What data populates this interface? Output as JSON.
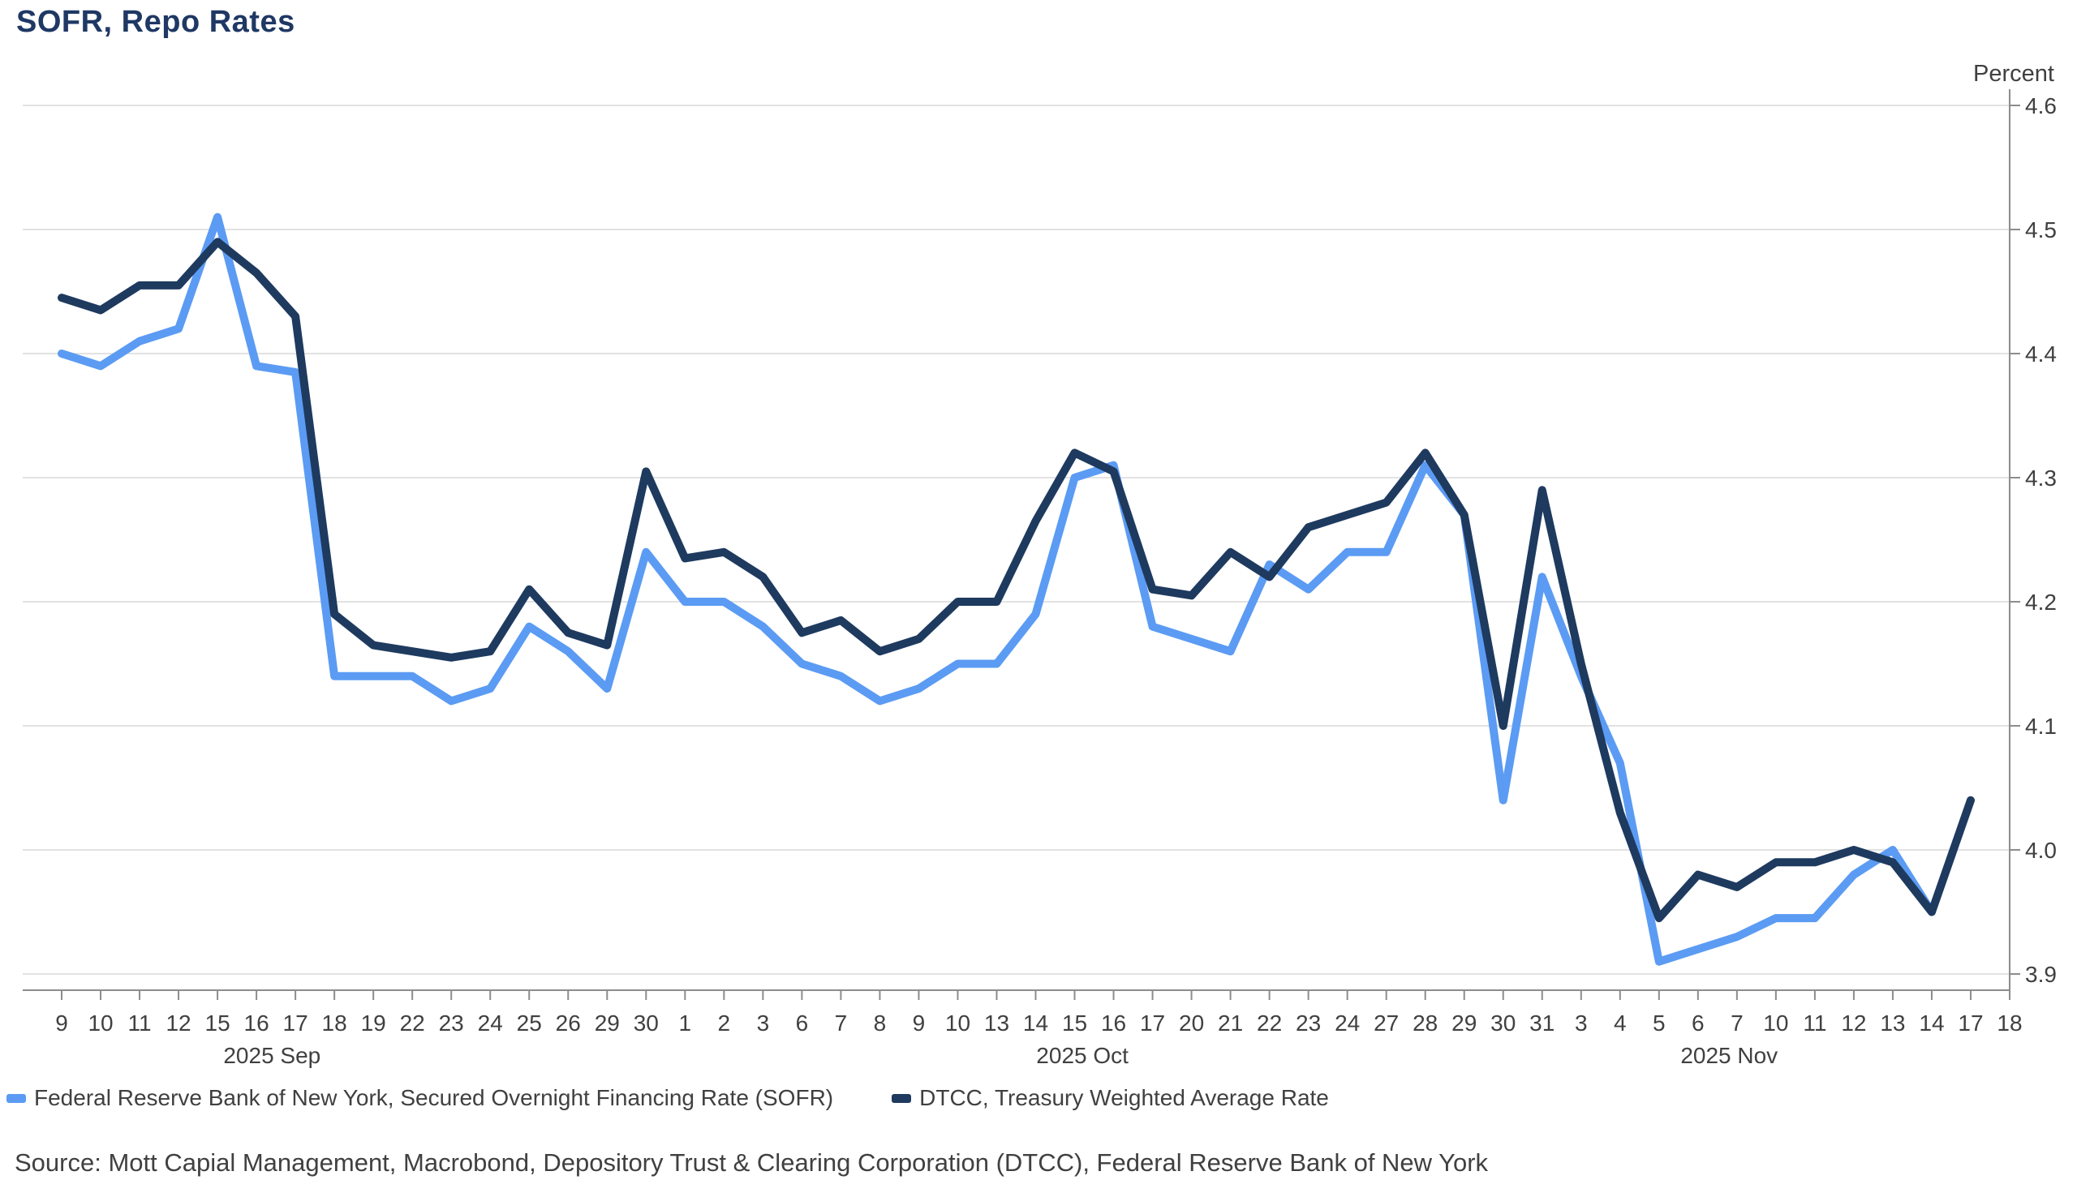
{
  "title": "SOFR, Repo Rates",
  "y_axis": {
    "unit_label": "Percent",
    "ticks": [
      "4.6",
      "4.5",
      "4.4",
      "4.3",
      "4.2",
      "4.1",
      "4.0",
      "3.9"
    ]
  },
  "x_axis": {
    "months": [
      {
        "label": "2025 Sep",
        "center_index": 5.4
      },
      {
        "label": "2025 Oct",
        "center_index": 26.2
      },
      {
        "label": "2025 Nov",
        "center_index": 42.8
      }
    ]
  },
  "legend": {
    "items": [
      {
        "label": "Federal Reserve Bank of New York, Secured Overnight Financing Rate (SOFR)",
        "color": "#5b9bf3"
      },
      {
        "label": "DTCC, Treasury Weighted Average Rate",
        "color": "#1e3a5f"
      }
    ]
  },
  "source": "Source: Mott Capial Management, Macrobond, Depository Trust & Clearing Corporation (DTCC), Federal Reserve Bank of New York",
  "colors": {
    "title": "#1f3864",
    "grid": "#d9d9d9",
    "axis": "#8c8c8c",
    "tick_text": "#404040"
  },
  "chart_data": {
    "type": "line",
    "title": "SOFR, Repo Rates",
    "ylabel": "Percent",
    "ylim": [
      3.9,
      4.6
    ],
    "grid": "horizontal",
    "legend_position": "bottom",
    "categories": [
      "9",
      "10",
      "11",
      "12",
      "15",
      "16",
      "17",
      "18",
      "19",
      "22",
      "23",
      "24",
      "25",
      "26",
      "29",
      "30",
      "1",
      "2",
      "3",
      "6",
      "7",
      "8",
      "9",
      "10",
      "13",
      "14",
      "15",
      "16",
      "17",
      "20",
      "21",
      "22",
      "23",
      "24",
      "27",
      "28",
      "29",
      "30",
      "31",
      "3",
      "4",
      "5",
      "6",
      "7",
      "10",
      "11",
      "12",
      "13",
      "14",
      "17",
      "18"
    ],
    "dates": [
      "2025-09-09",
      "2025-09-10",
      "2025-09-11",
      "2025-09-12",
      "2025-09-15",
      "2025-09-16",
      "2025-09-17",
      "2025-09-18",
      "2025-09-19",
      "2025-09-22",
      "2025-09-23",
      "2025-09-24",
      "2025-09-25",
      "2025-09-26",
      "2025-09-29",
      "2025-09-30",
      "2025-10-01",
      "2025-10-02",
      "2025-10-03",
      "2025-10-06",
      "2025-10-07",
      "2025-10-08",
      "2025-10-09",
      "2025-10-10",
      "2025-10-13",
      "2025-10-14",
      "2025-10-15",
      "2025-10-16",
      "2025-10-17",
      "2025-10-20",
      "2025-10-21",
      "2025-10-22",
      "2025-10-23",
      "2025-10-24",
      "2025-10-27",
      "2025-10-28",
      "2025-10-29",
      "2025-10-30",
      "2025-10-31",
      "2025-11-03",
      "2025-11-04",
      "2025-11-05",
      "2025-11-06",
      "2025-11-07",
      "2025-11-10",
      "2025-11-11",
      "2025-11-12",
      "2025-11-13",
      "2025-11-14",
      "2025-11-17",
      "2025-11-18"
    ],
    "series": [
      {
        "name": "Federal Reserve Bank of New York, Secured Overnight Financing Rate (SOFR)",
        "color": "#5b9bf3",
        "values": [
          4.4,
          4.39,
          4.41,
          4.42,
          4.51,
          4.39,
          4.385,
          4.14,
          4.14,
          4.14,
          4.12,
          4.13,
          4.18,
          4.16,
          4.13,
          4.24,
          4.2,
          4.2,
          4.18,
          4.15,
          4.14,
          4.12,
          4.13,
          4.15,
          4.15,
          4.19,
          4.3,
          4.31,
          4.18,
          4.17,
          4.16,
          4.23,
          4.21,
          4.24,
          4.24,
          4.31,
          4.27,
          4.04,
          4.22,
          4.14,
          4.07,
          3.91,
          3.92,
          3.93,
          3.945,
          3.945,
          3.98,
          4.0,
          3.95,
          null,
          null
        ]
      },
      {
        "name": "DTCC, Treasury Weighted Average Rate",
        "color": "#1e3a5f",
        "values": [
          4.445,
          4.435,
          4.455,
          4.455,
          4.49,
          4.465,
          4.43,
          4.19,
          4.165,
          4.16,
          4.155,
          4.16,
          4.21,
          4.175,
          4.165,
          4.305,
          4.235,
          4.24,
          4.22,
          4.175,
          4.185,
          4.16,
          4.17,
          4.2,
          4.2,
          4.265,
          4.32,
          4.305,
          4.21,
          4.205,
          4.24,
          4.22,
          4.26,
          4.27,
          4.28,
          4.32,
          4.27,
          4.1,
          4.29,
          4.15,
          4.03,
          3.945,
          3.98,
          3.97,
          3.99,
          3.99,
          4.0,
          3.99,
          3.95,
          4.04,
          null
        ]
      }
    ]
  }
}
